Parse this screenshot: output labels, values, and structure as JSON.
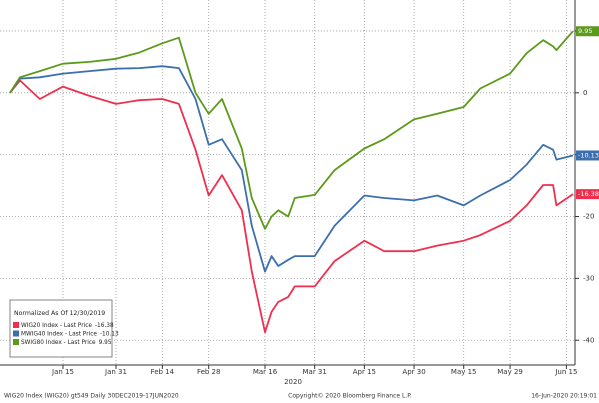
{
  "chart_data": {
    "type": "line",
    "legend_title": "Normalized As Of 12/30/2019",
    "legend_position": "lower left",
    "x_label": "2020",
    "footer_left": "WIG20 Index (WIG20) gt549 Daily 30DEC2019-17JUN2020",
    "footer_center": "Copyright© 2020 Bloomberg Finance L.P.",
    "footer_right": "16-Jun-2020 20:19:01",
    "grid": true,
    "x": [
      "2019-12-30",
      "2020-01-02",
      "2020-01-08",
      "2020-01-15",
      "2020-01-23",
      "2020-01-31",
      "2020-02-07",
      "2020-02-14",
      "2020-02-19",
      "2020-02-24",
      "2020-02-28",
      "2020-03-03",
      "2020-03-09",
      "2020-03-12",
      "2020-03-16",
      "2020-03-18",
      "2020-03-20",
      "2020-03-23",
      "2020-03-25",
      "2020-03-31",
      "2020-04-06",
      "2020-04-15",
      "2020-04-21",
      "2020-04-30",
      "2020-05-07",
      "2020-05-15",
      "2020-05-20",
      "2020-05-29",
      "2020-06-03",
      "2020-06-08",
      "2020-06-11",
      "2020-06-12",
      "2020-06-17"
    ],
    "xlim": [
      "2019-12-30",
      "2020-06-17"
    ],
    "xticks": [
      {
        "value": "2020-01-15",
        "label": "Jan 15"
      },
      {
        "value": "2020-01-31",
        "label": "Jan 31"
      },
      {
        "value": "2020-02-14",
        "label": "Feb 14"
      },
      {
        "value": "2020-02-28",
        "label": "Feb 28"
      },
      {
        "value": "2020-03-16",
        "label": "Mar 16"
      },
      {
        "value": "2020-03-31",
        "label": "Mar 31"
      },
      {
        "value": "2020-04-15",
        "label": "Apr 15"
      },
      {
        "value": "2020-04-30",
        "label": "Apr 30"
      },
      {
        "value": "2020-05-15",
        "label": "May 15"
      },
      {
        "value": "2020-05-29",
        "label": "May 29"
      },
      {
        "value": "2020-06-15",
        "label": "Jun 15"
      }
    ],
    "ylim": [
      -44,
      15
    ],
    "yticks": [
      10,
      0,
      -10,
      -20,
      -30,
      -40
    ],
    "series": [
      {
        "name": "WIG20 Index - Last Price",
        "color": "#ef2f4e",
        "values": [
          0,
          2,
          -1,
          1,
          -0.5,
          -1.8,
          -1.2,
          -1,
          -1.8,
          -9.2,
          -16.6,
          -13.3,
          -19,
          -28.9,
          -38.7,
          -35.4,
          -33.8,
          -33,
          -31.3,
          -31.3,
          -27.2,
          -23.9,
          -25.6,
          -25.6,
          -24.7,
          -23.9,
          -23,
          -20.7,
          -18.2,
          -14.9,
          -14.9,
          -18.2,
          -16.38
        ]
      },
      {
        "name": "MWIG40 Index - Last Price",
        "color": "#3b6fae",
        "values": [
          0,
          2.3,
          2.5,
          3.1,
          3.5,
          3.9,
          4,
          4.3,
          4,
          -1,
          -8.4,
          -7.5,
          -12.5,
          -21.5,
          -28.9,
          -26.4,
          -28,
          -27,
          -26.4,
          -26.4,
          -21.5,
          -16.6,
          -17,
          -17.4,
          -16.6,
          -18.2,
          -16.6,
          -14.1,
          -11.6,
          -8.4,
          -9.2,
          -10.8,
          -10.13
        ]
      },
      {
        "name": "SWIG80 Index - Last Price",
        "color": "#5b9a1b",
        "values": [
          0,
          2.5,
          3.5,
          4.7,
          5,
          5.5,
          6.5,
          8,
          8.9,
          0,
          -3.4,
          -1,
          -9,
          -17,
          -22,
          -20,
          -19,
          -20,
          -17,
          -16.5,
          -12.5,
          -9,
          -7.5,
          -4.3,
          -3.4,
          -2.3,
          0.7,
          3.1,
          6.4,
          8.5,
          7.5,
          6.9,
          9.95
        ]
      }
    ]
  }
}
